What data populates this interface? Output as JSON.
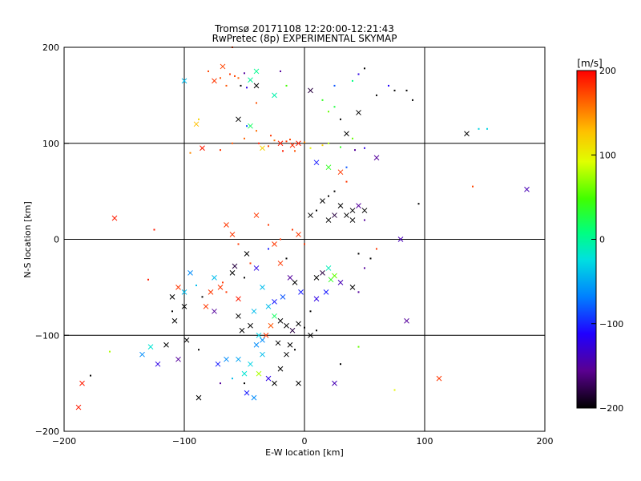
{
  "chart_data": {
    "type": "scatter",
    "title": "Tromsø 20171108 12:20:00-12:21:43",
    "subtitle": "RwPretec (8p) EXPERIMENTAL SKYMAP",
    "xlabel": "E-W location [km]",
    "ylabel": "N-S location [km]",
    "xlim": [
      -200,
      200
    ],
    "ylim": [
      -200,
      200
    ],
    "x_ticks": [
      -200,
      -100,
      0,
      100,
      200
    ],
    "y_ticks": [
      -200,
      -100,
      0,
      100,
      200
    ],
    "x_tick_labels": [
      "−200",
      "−100",
      "0",
      "100",
      "200"
    ],
    "y_tick_labels": [
      "−200",
      "−100",
      "0",
      "100",
      "200"
    ],
    "grid": true,
    "colorbar": {
      "label": "[m/s]",
      "range": [
        -200,
        200
      ],
      "ticks": [
        200,
        100,
        0,
        -100,
        -200
      ],
      "tick_labels": [
        "200",
        "100",
        "0",
        "−100",
        "−200"
      ],
      "colors": [
        "#000000",
        "#5a0090",
        "#0000ff",
        "#00b0ff",
        "#00ffa0",
        "#00ff00",
        "#c0ff00",
        "#ffff00",
        "#ffa000",
        "#ff0000"
      ]
    },
    "markers": [
      "x",
      "dot"
    ],
    "points": [
      [
        -62,
        172,
        180,
        "dot"
      ],
      [
        -70,
        168,
        170,
        "dot"
      ],
      [
        -75,
        165,
        180,
        "x"
      ],
      [
        -65,
        160,
        170,
        "dot"
      ],
      [
        -58,
        170,
        175,
        "dot"
      ],
      [
        -60,
        200,
        180,
        "dot"
      ],
      [
        -55,
        168,
        165,
        "dot"
      ],
      [
        -80,
        175,
        175,
        "dot"
      ],
      [
        -68,
        180,
        175,
        "x"
      ],
      [
        -48,
        158,
        -120,
        "dot"
      ],
      [
        -45,
        166,
        0,
        "x"
      ],
      [
        -50,
        173,
        -150,
        "dot"
      ],
      [
        -53,
        160,
        -200,
        "dot"
      ],
      [
        -40,
        160,
        -200,
        "x"
      ],
      [
        -40,
        175,
        5,
        "x"
      ],
      [
        -100,
        165,
        -40,
        "x"
      ],
      [
        -90,
        120,
        130,
        "x"
      ],
      [
        -88,
        125,
        120,
        "dot"
      ],
      [
        -55,
        125,
        -200,
        "x"
      ],
      [
        -48,
        118,
        -80,
        "dot"
      ],
      [
        -45,
        118,
        20,
        "x"
      ],
      [
        -25,
        150,
        -5,
        "x"
      ],
      [
        -40,
        142,
        170,
        "dot"
      ],
      [
        -20,
        175,
        -150,
        "dot"
      ],
      [
        -15,
        160,
        50,
        "dot"
      ],
      [
        5,
        155,
        -180,
        "x"
      ],
      [
        15,
        145,
        40,
        "dot"
      ],
      [
        25,
        138,
        30,
        "dot"
      ],
      [
        20,
        133,
        60,
        "dot"
      ],
      [
        45,
        132,
        -200,
        "x"
      ],
      [
        30,
        125,
        -200,
        "dot"
      ],
      [
        60,
        150,
        -200,
        "dot"
      ],
      [
        70,
        160,
        -110,
        "dot"
      ],
      [
        75,
        155,
        -200,
        "dot"
      ],
      [
        85,
        155,
        -200,
        "dot"
      ],
      [
        90,
        145,
        -200,
        "dot"
      ],
      [
        25,
        160,
        -80,
        "dot"
      ],
      [
        40,
        165,
        10,
        "dot"
      ],
      [
        45,
        172,
        -120,
        "dot"
      ],
      [
        50,
        178,
        -200,
        "dot"
      ],
      [
        -20,
        100,
        190,
        "x"
      ],
      [
        -15,
        102,
        180,
        "dot"
      ],
      [
        -10,
        98,
        185,
        "x"
      ],
      [
        -25,
        103,
        160,
        "dot"
      ],
      [
        -30,
        97,
        175,
        "dot"
      ],
      [
        -5,
        100,
        190,
        "x"
      ],
      [
        0,
        101,
        150,
        "dot"
      ],
      [
        -35,
        95,
        120,
        "x"
      ],
      [
        5,
        95,
        100,
        "dot"
      ],
      [
        15,
        98,
        120,
        "dot"
      ],
      [
        20,
        100,
        80,
        "dot"
      ],
      [
        30,
        96,
        40,
        "dot"
      ],
      [
        40,
        105,
        60,
        "dot"
      ],
      [
        50,
        95,
        -120,
        "dot"
      ],
      [
        60,
        85,
        -150,
        "x"
      ],
      [
        -12,
        104,
        175,
        "dot"
      ],
      [
        -18,
        92,
        190,
        "dot"
      ],
      [
        -28,
        108,
        180,
        "dot"
      ],
      [
        -8,
        92,
        170,
        "dot"
      ],
      [
        -38,
        100,
        190,
        "dot"
      ],
      [
        -85,
        95,
        190,
        "x"
      ],
      [
        -70,
        93,
        180,
        "dot"
      ],
      [
        -60,
        100,
        170,
        "dot"
      ],
      [
        -50,
        105,
        165,
        "dot"
      ],
      [
        -40,
        113,
        160,
        "dot"
      ],
      [
        35,
        110,
        -200,
        "x"
      ],
      [
        42,
        93,
        -150,
        "dot"
      ],
      [
        -95,
        90,
        150,
        "dot"
      ],
      [
        135,
        110,
        -200,
        "x"
      ],
      [
        145,
        115,
        -30,
        "dot"
      ],
      [
        152,
        115,
        -30,
        "dot"
      ],
      [
        185,
        52,
        -140,
        "x"
      ],
      [
        140,
        55,
        175,
        "dot"
      ],
      [
        95,
        37,
        -200,
        "dot"
      ],
      [
        80,
        0,
        -140,
        "x"
      ],
      [
        -158,
        22,
        190,
        "x"
      ],
      [
        -125,
        10,
        190,
        "dot"
      ],
      [
        -130,
        -42,
        190,
        "dot"
      ],
      [
        -185,
        -150,
        190,
        "x"
      ],
      [
        -188,
        -175,
        190,
        "x"
      ],
      [
        -178,
        -142,
        -200,
        "dot"
      ],
      [
        -162,
        -117,
        80,
        "dot"
      ],
      [
        -135,
        -120,
        -60,
        "x"
      ],
      [
        -128,
        -112,
        -20,
        "x"
      ],
      [
        -122,
        -130,
        -120,
        "x"
      ],
      [
        -115,
        -110,
        -200,
        "x"
      ],
      [
        -105,
        -125,
        -150,
        "x"
      ],
      [
        -110,
        -60,
        -200,
        "x"
      ],
      [
        -100,
        -70,
        -200,
        "x"
      ],
      [
        -108,
        -85,
        -200,
        "x"
      ],
      [
        -98,
        -105,
        -200,
        "x"
      ],
      [
        -88,
        -115,
        -200,
        "dot"
      ],
      [
        -85,
        -60,
        -200,
        "dot"
      ],
      [
        -75,
        -75,
        -150,
        "x"
      ],
      [
        -70,
        -50,
        180,
        "x"
      ],
      [
        -65,
        -55,
        180,
        "dot"
      ],
      [
        -55,
        -62,
        190,
        "x"
      ],
      [
        -60,
        -35,
        -200,
        "x"
      ],
      [
        -58,
        -28,
        -180,
        "x"
      ],
      [
        -50,
        -40,
        -200,
        "dot"
      ],
      [
        -40,
        -30,
        -120,
        "x"
      ],
      [
        -30,
        -10,
        -100,
        "dot"
      ],
      [
        -25,
        -5,
        180,
        "x"
      ],
      [
        -20,
        0,
        180,
        "dot"
      ],
      [
        -30,
        15,
        180,
        "dot"
      ],
      [
        -65,
        15,
        180,
        "x"
      ],
      [
        -60,
        5,
        180,
        "x"
      ],
      [
        -55,
        -5,
        180,
        "dot"
      ],
      [
        -48,
        -15,
        -200,
        "x"
      ],
      [
        -45,
        -25,
        180,
        "dot"
      ],
      [
        -35,
        -50,
        -40,
        "x"
      ],
      [
        -30,
        -70,
        -40,
        "x"
      ],
      [
        -25,
        -80,
        20,
        "x"
      ],
      [
        -20,
        -85,
        -200,
        "x"
      ],
      [
        -15,
        -90,
        -200,
        "x"
      ],
      [
        -10,
        -95,
        -180,
        "x"
      ],
      [
        -5,
        -88,
        -200,
        "x"
      ],
      [
        0,
        -92,
        -200,
        "dot"
      ],
      [
        5,
        -100,
        -200,
        "x"
      ],
      [
        10,
        -95,
        -200,
        "dot"
      ],
      [
        -40,
        -110,
        -60,
        "x"
      ],
      [
        -35,
        -120,
        -40,
        "x"
      ],
      [
        -45,
        -130,
        -30,
        "x"
      ],
      [
        -50,
        -140,
        -20,
        "x"
      ],
      [
        -55,
        -125,
        -50,
        "x"
      ],
      [
        -38,
        -140,
        80,
        "x"
      ],
      [
        -30,
        -145,
        -120,
        "x"
      ],
      [
        -25,
        -150,
        -200,
        "x"
      ],
      [
        -20,
        -135,
        -200,
        "x"
      ],
      [
        -15,
        -120,
        -200,
        "x"
      ],
      [
        -48,
        -160,
        -100,
        "x"
      ],
      [
        -42,
        -165,
        -60,
        "x"
      ],
      [
        -50,
        -150,
        -200,
        "dot"
      ],
      [
        -60,
        -145,
        -40,
        "dot"
      ],
      [
        -65,
        -125,
        -60,
        "x"
      ],
      [
        -72,
        -130,
        -100,
        "x"
      ],
      [
        -70,
        -150,
        -150,
        "dot"
      ],
      [
        -88,
        -165,
        -200,
        "x"
      ],
      [
        -5,
        -150,
        -200,
        "x"
      ],
      [
        25,
        -150,
        -140,
        "x"
      ],
      [
        30,
        -130,
        -200,
        "dot"
      ],
      [
        45,
        -112,
        60,
        "dot"
      ],
      [
        75,
        -157,
        100,
        "dot"
      ],
      [
        85,
        -85,
        -150,
        "x"
      ],
      [
        112,
        -145,
        180,
        "x"
      ],
      [
        10,
        -40,
        -200,
        "x"
      ],
      [
        15,
        -35,
        -180,
        "x"
      ],
      [
        20,
        -30,
        -10,
        "x"
      ],
      [
        22,
        -42,
        40,
        "x"
      ],
      [
        25,
        -38,
        60,
        "x"
      ],
      [
        18,
        -55,
        -100,
        "x"
      ],
      [
        10,
        -62,
        -120,
        "x"
      ],
      [
        5,
        -75,
        -200,
        "dot"
      ],
      [
        30,
        -45,
        -140,
        "x"
      ],
      [
        40,
        -50,
        -200,
        "x"
      ],
      [
        45,
        -55,
        -150,
        "dot"
      ],
      [
        50,
        -30,
        -150,
        "dot"
      ],
      [
        55,
        -20,
        -200,
        "dot"
      ],
      [
        60,
        -10,
        180,
        "dot"
      ],
      [
        45,
        -15,
        -200,
        "dot"
      ],
      [
        20,
        20,
        -200,
        "x"
      ],
      [
        25,
        25,
        -180,
        "x"
      ],
      [
        35,
        25,
        -200,
        "x"
      ],
      [
        40,
        30,
        -200,
        "x"
      ],
      [
        45,
        35,
        -150,
        "x"
      ],
      [
        50,
        30,
        -200,
        "x"
      ],
      [
        30,
        35,
        -200,
        "x"
      ],
      [
        15,
        40,
        -200,
        "x"
      ],
      [
        10,
        30,
        -200,
        "dot"
      ],
      [
        5,
        25,
        -200,
        "x"
      ],
      [
        40,
        20,
        -200,
        "x"
      ],
      [
        20,
        45,
        -200,
        "dot"
      ],
      [
        25,
        50,
        -200,
        "dot"
      ],
      [
        35,
        60,
        180,
        "dot"
      ],
      [
        30,
        70,
        180,
        "x"
      ],
      [
        20,
        75,
        40,
        "x"
      ],
      [
        10,
        80,
        -100,
        "x"
      ],
      [
        35,
        75,
        -80,
        "dot"
      ],
      [
        50,
        20,
        -150,
        "dot"
      ],
      [
        -40,
        25,
        180,
        "x"
      ],
      [
        -10,
        10,
        180,
        "dot"
      ],
      [
        -5,
        5,
        180,
        "x"
      ],
      [
        0,
        -5,
        180,
        "dot"
      ],
      [
        -15,
        -20,
        -200,
        "dot"
      ],
      [
        -20,
        -25,
        180,
        "x"
      ],
      [
        -12,
        -40,
        -150,
        "x"
      ],
      [
        -8,
        -45,
        -200,
        "x"
      ],
      [
        -3,
        -55,
        -100,
        "x"
      ],
      [
        -18,
        -60,
        -80,
        "x"
      ],
      [
        -25,
        -65,
        -100,
        "x"
      ],
      [
        -28,
        -90,
        170,
        "x"
      ],
      [
        -32,
        -100,
        180,
        "x"
      ],
      [
        -22,
        -108,
        -200,
        "x"
      ],
      [
        -12,
        -110,
        -200,
        "x"
      ],
      [
        -8,
        -115,
        -200,
        "dot"
      ],
      [
        -95,
        -35,
        -60,
        "x"
      ],
      [
        -90,
        -48,
        -40,
        "dot"
      ],
      [
        -100,
        -55,
        -40,
        "x"
      ],
      [
        -105,
        -50,
        180,
        "x"
      ],
      [
        -110,
        -75,
        -200,
        "dot"
      ],
      [
        -75,
        -40,
        -40,
        "x"
      ],
      [
        -68,
        -45,
        180,
        "dot"
      ],
      [
        -78,
        -55,
        180,
        "x"
      ],
      [
        -82,
        -70,
        180,
        "x"
      ],
      [
        -55,
        -80,
        -200,
        "x"
      ],
      [
        -45,
        -90,
        -200,
        "x"
      ],
      [
        -52,
        -95,
        -200,
        "x"
      ],
      [
        -38,
        -100,
        -30,
        "x"
      ],
      [
        -42,
        -75,
        -40,
        "x"
      ],
      [
        -35,
        -105,
        -60,
        "x"
      ]
    ]
  }
}
